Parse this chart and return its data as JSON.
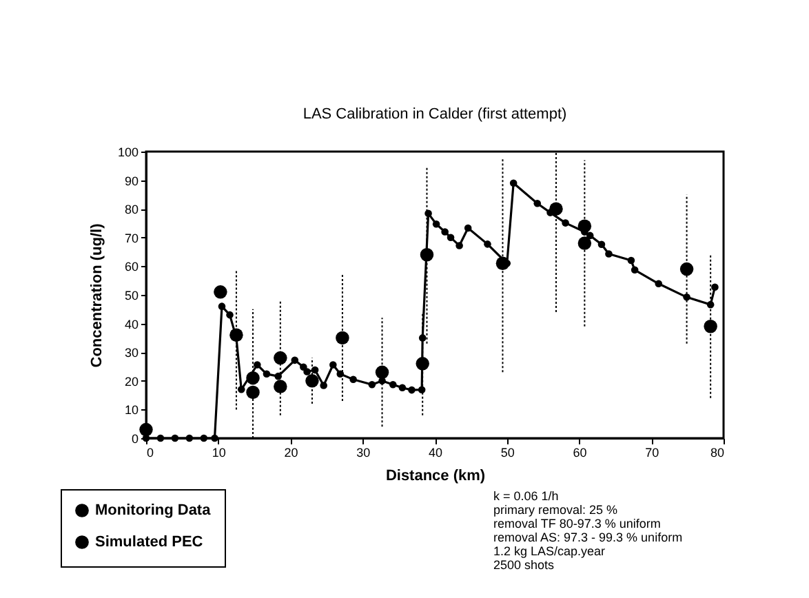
{
  "chart_data": {
    "type": "line",
    "title": "LAS Calibration in Calder (first attempt)",
    "xlabel": "Distance (km)",
    "ylabel": "Concentration (ug/l)",
    "xlim": [
      0,
      80
    ],
    "xticks": [
      0,
      10,
      20,
      30,
      40,
      50,
      60,
      70,
      80
    ],
    "ylim": [
      0,
      100
    ],
    "yticks": [
      0,
      10,
      20,
      30,
      40,
      50,
      60,
      70,
      80,
      90,
      100
    ],
    "grid": false,
    "legend": "bottom left",
    "marker": "circle",
    "series": [
      {
        "name": "Monitoring Data",
        "type": "scatter",
        "color": "#000000",
        "x": [
          0,
          10.3,
          12.5,
          14.8,
          14.8,
          18.6,
          18.6,
          23,
          27.2,
          32.7,
          38.3,
          38.9,
          49.4,
          56.8,
          60.75,
          60.75,
          74.9,
          78.2
        ],
        "values": [
          3,
          51,
          36,
          16,
          21,
          28,
          18,
          20,
          35,
          23,
          26,
          64,
          61,
          80,
          74,
          68,
          59,
          39
        ],
        "errors": [
          null,
          null,
          [
            10,
            59
          ],
          [
            0,
            45
          ],
          null,
          [
            8,
            48
          ],
          null,
          [
            12,
            28
          ],
          [
            13,
            57
          ],
          [
            4,
            42
          ],
          [
            8,
            44
          ],
          [
            33,
            95
          ],
          [
            23,
            98
          ],
          [
            44,
            100
          ],
          null,
          [
            39,
            97
          ],
          [
            33,
            85
          ],
          [
            14,
            64
          ]
        ]
      },
      {
        "name": "Simulated PEC",
        "type": "line",
        "color": "#000000",
        "x": [
          0,
          2,
          4,
          6,
          8,
          9.5,
          10.5,
          11.6,
          12.5,
          13.2,
          15.4,
          16.7,
          18.3,
          20.6,
          21.8,
          22.3,
          23.4,
          24.6,
          25.9,
          26.9,
          28.7,
          31.3,
          32.7,
          34.2,
          35.5,
          36.8,
          38.2,
          38.3,
          39.1,
          40.2,
          41.4,
          42.2,
          43.4,
          44.6,
          47.3,
          50,
          50.9,
          54.2,
          56,
          58.1,
          60.75,
          61.5,
          63.1,
          64.1,
          67.2,
          67.7,
          71,
          74.9,
          78.2,
          78.8
        ],
        "values": [
          0,
          0,
          0,
          0,
          0,
          0,
          46,
          43,
          35,
          17,
          25.6,
          22.4,
          21.6,
          27.2,
          24.8,
          23.2,
          23.8,
          18.4,
          25.6,
          22.4,
          20.5,
          18.7,
          20,
          18.7,
          17.6,
          16.8,
          16.9,
          35,
          78.4,
          74.7,
          72,
          70,
          67.2,
          73.3,
          67.7,
          61,
          89,
          81.9,
          78.7,
          75.1,
          72,
          70.7,
          67.6,
          64.3,
          62,
          58.7,
          53.9,
          49.2,
          46.6,
          52.7
        ]
      }
    ],
    "annotations": [
      "k = 0.06 1/h",
      "primary removal: 25 %",
      "removal TF  80-97.3 % uniform",
      "removal AS: 97.3 - 99.3 % uniform",
      "1.2 kg LAS/cap.year",
      "2500 shots"
    ]
  }
}
